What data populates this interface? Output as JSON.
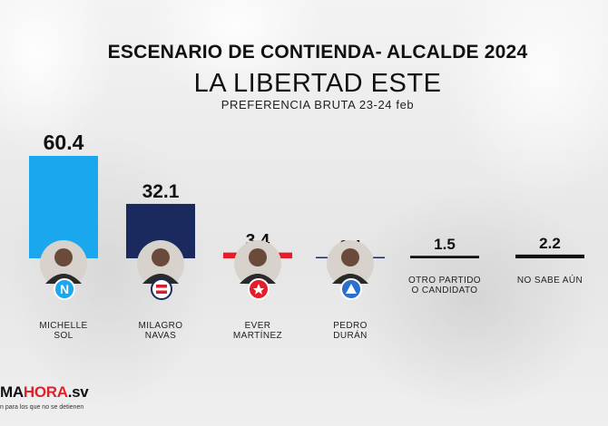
{
  "chart_data": {
    "type": "bar",
    "title": "ESCENARIO DE CONTIENDA- ALCALDE 2024",
    "subtitle": "LA LIBERTAD ESTE",
    "period_note": "PREFERENCIA BRUTA 23-24 feb",
    "categories": [
      [
        "MICHELLE",
        "SOL"
      ],
      [
        "MILAGRO",
        "NAVAS"
      ],
      [
        "EVER",
        "MARTÍNEZ"
      ],
      [
        "PEDRO",
        "DURÁN"
      ],
      [
        "OTRO PARTIDO",
        "O CANDIDATO"
      ],
      [
        "NO SABE AÚN"
      ]
    ],
    "values": [
      60.4,
      32.1,
      3.4,
      0.4,
      1.5,
      2.2
    ],
    "value_labels": [
      "60.4",
      "32.1",
      "3.4",
      "0.4",
      "1.5",
      "2.2"
    ],
    "colors": [
      "#1aa7ee",
      "#1a2a5e",
      "#e61e2a",
      "#1a2a5e",
      "#111111",
      "#111111"
    ],
    "party_icons": [
      "nuevas-ideas-n-icon",
      "arena-flag-icon",
      "fmln-star-icon",
      "triangle-party-icon",
      null,
      null
    ],
    "ylim": [
      0,
      60.4
    ]
  },
  "brand": {
    "logo_prefix": "MA",
    "logo_accent": "HORA",
    "logo_suffix": ".sv",
    "tagline": "n para los que no se detienen"
  }
}
